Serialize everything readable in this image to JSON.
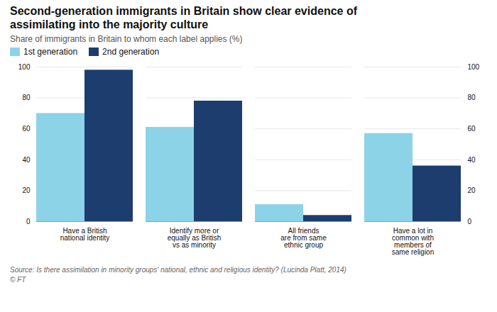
{
  "chart_data": {
    "type": "bar",
    "title": "Second-generation immigrants in Britain show clear evidence of\nassimilating into the majority culture",
    "subtitle": "Share of immigrants in Britain to whom each label applies (%)",
    "caption": [
      "Source: Is there assimilation in minority groups' national, ethnic and religious identity? (Lucinda Platt, 2014)",
      "© FT"
    ],
    "categories": [
      "Have a British\nnational identity",
      "Identify more or\nequally as British\nvs as minority",
      "All friends\nare from same\nethnic group",
      "Have a lot in\ncommon with\nmembers of\nsame religion"
    ],
    "series": [
      {
        "name": "1st generation",
        "color": "#8DD3E8",
        "values": [
          70,
          61,
          11,
          57
        ]
      },
      {
        "name": "2nd generation",
        "color": "#1C3D6E",
        "values": [
          98,
          78,
          4,
          36
        ]
      }
    ],
    "ylim": [
      0,
      100
    ],
    "yticks": [
      0,
      20,
      40,
      60,
      80,
      100
    ],
    "grid": true,
    "legend": "upper left"
  }
}
